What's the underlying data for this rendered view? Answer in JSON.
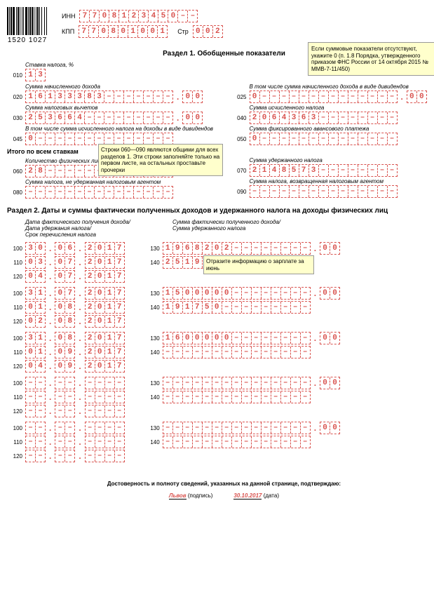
{
  "header": {
    "barcode_text": "1520 1027",
    "label_inn": "ИНН",
    "inn": "7708123450--",
    "label_kpp": "КПП",
    "kpp": "770801001",
    "label_str": "Стр",
    "str": "002"
  },
  "section1": {
    "title": "Раздел 1. Обобщенные показатели",
    "note1": "Если суммовые показатели отсутствуют, укажите 0 (п. 1.8 Порядка, утвержденного приказом ФНС России от 14 октября 2015 № ММВ-7-11/450)",
    "note2": "Строки 060—090 являются общими для всех разделов 1. Эти строки заполняйте только на первом листе, на остальных проставьте прочерки",
    "labels": {
      "stavka": "Ставка налога, %",
      "summa_doh": "Сумма начисленного дохода",
      "div": "В том числе сумма начисленного дохода в виде дивидендов",
      "vychet": "Сумма налоговых вычетов",
      "ischis": "Сумма исчисленного налога",
      "div2": "В том числе сумма исчисленного налога на доходы в виде дивидендов",
      "avans": "Сумма фиксированного авансового платежа",
      "itogo": "Итого по всем ставкам",
      "kolvo": "Количество физических лиц, получивших доход",
      "uderzh": "Сумма удержанного налога",
      "neuderzh": "Сумма налога, не удержанная налоговым агентом",
      "vozvr": "Сумма налога, возвращенная налоговым агентом"
    },
    "rows": {
      "010": "13",
      "020": {
        "main": "16133383-------",
        "dec": "00"
      },
      "025": {
        "main": "0--------------",
        "dec": "00"
      },
      "030": {
        "main": "253664---------",
        "dec": "00"
      },
      "040": "2064363--------",
      "045": "0--------------",
      "050": "0--------------",
      "060": "28-------------",
      "070": "2148573--------",
      "080": "---------------",
      "090": "---------------"
    }
  },
  "section2": {
    "title": "Раздел 2. Даты и суммы фактически полученных доходов и удержанного налога на доходы физических лиц",
    "hdr_left": "Дата фактического получения дохода/\nДата удержания налога/\nСрок перечисления налога",
    "hdr_right": "Сумма фактически полученного дохода/\nСумма удержанного налога",
    "note": "Отразите информацию о зарплате за июнь",
    "blocks": [
      {
        "d1": "30.06.2017",
        "d2": "03.07.2017",
        "d3": "04.07.2017",
        "s1": {
          "main": "1968202--------",
          "dec": "00"
        },
        "s2": "251900---------"
      },
      {
        "d1": "31.07.2017",
        "d2": "01.08.2017",
        "d3": "02.08.2017",
        "s1": {
          "main": "1500000--------",
          "dec": "00"
        },
        "s2": "191750---------"
      },
      {
        "d1": "31.08.2017",
        "d2": "01.09.2017",
        "d3": "04.09.2017",
        "s1": {
          "main": "1600000--------",
          "dec": "00"
        },
        "s2": "---------------"
      },
      {
        "d1": "--.--.----",
        "d2": "--.--.----",
        "d3": "--.--.----",
        "s1": {
          "main": "---------------",
          "dec": "00"
        },
        "s2": "---------------"
      },
      {
        "d1": "--.--.----",
        "d2": "--.--.----",
        "d3": "--.--.----",
        "s1": {
          "main": "---------------",
          "dec": "00"
        },
        "s2": "---------------"
      }
    ]
  },
  "footer": {
    "text": "Достоверность и полноту сведений, указанных на данной странице, подтверждаю:",
    "sig": "Львов",
    "sig_lbl": "(подпись)",
    "date": "30.10.2017",
    "date_lbl": "(дата)"
  },
  "barcode_pattern": [
    2,
    1,
    1,
    1,
    2,
    1,
    3,
    2,
    1,
    1,
    2,
    1,
    1,
    2,
    1,
    1,
    1,
    2,
    3,
    1,
    1,
    1,
    2,
    1,
    2,
    1,
    1,
    2,
    1,
    1,
    2,
    1,
    1,
    2,
    1,
    3,
    1,
    2,
    1,
    1
  ]
}
